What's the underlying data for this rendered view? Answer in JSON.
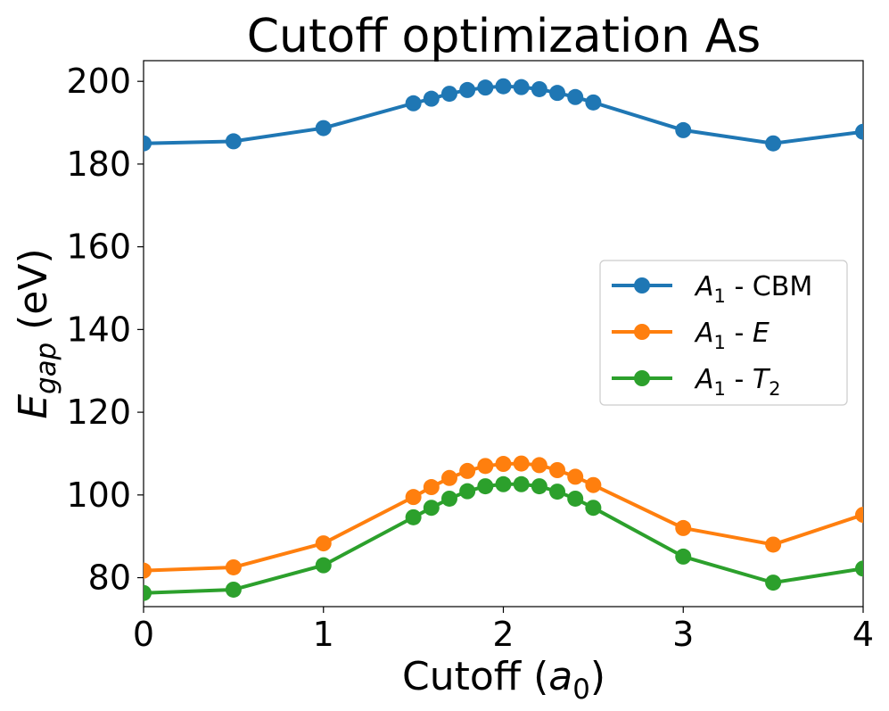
{
  "chart_data": {
    "type": "line",
    "title": "Cutoff optimization As",
    "xlabel": {
      "main": "Cutoff (",
      "italic": "a",
      "sub": "0",
      "close": ")"
    },
    "ylabel": {
      "italic": "E",
      "sub": "gap",
      "rest": " (eV)"
    },
    "xlim": [
      0,
      4
    ],
    "ylim": [
      73,
      205
    ],
    "xticks": [
      0,
      1,
      2,
      3,
      4
    ],
    "yticks": [
      80,
      100,
      120,
      140,
      160,
      180,
      200
    ],
    "x": [
      0,
      0.5,
      1,
      1.5,
      1.6,
      1.7,
      1.8,
      1.9,
      2.0,
      2.1,
      2.2,
      2.3,
      2.4,
      2.5,
      3,
      3.5,
      4
    ],
    "series": [
      {
        "name": "A1 - CBM",
        "color": "#1f77b4",
        "label": {
          "main": "A",
          "sub": "1",
          "rest": " - CBM",
          "italic2": "",
          "sub2": ""
        },
        "values": [
          185.0,
          185.5,
          188.7,
          194.7,
          195.8,
          197.0,
          197.9,
          198.5,
          198.8,
          198.6,
          198.1,
          197.2,
          196.2,
          194.9,
          188.2,
          185.0,
          187.8
        ]
      },
      {
        "name": "A1 - E",
        "color": "#ff7f0e",
        "label": {
          "main": "A",
          "sub": "1",
          "rest": " - ",
          "italic2": "E",
          "sub2": ""
        },
        "values": [
          81.7,
          82.5,
          88.3,
          99.5,
          101.9,
          104.1,
          105.8,
          107.0,
          107.5,
          107.6,
          107.2,
          106.0,
          104.4,
          102.4,
          92.0,
          88.0,
          95.2
        ]
      },
      {
        "name": "A1 - T2",
        "color": "#2ca02c",
        "label": {
          "main": "A",
          "sub": "1",
          "rest": " - ",
          "italic2": "T",
          "sub2": "2"
        },
        "values": [
          76.3,
          77.1,
          83.0,
          94.6,
          96.9,
          99.1,
          100.9,
          102.1,
          102.6,
          102.6,
          102.1,
          100.8,
          99.1,
          96.9,
          85.1,
          78.8,
          82.2
        ]
      }
    ],
    "legend_position": "center-right"
  }
}
